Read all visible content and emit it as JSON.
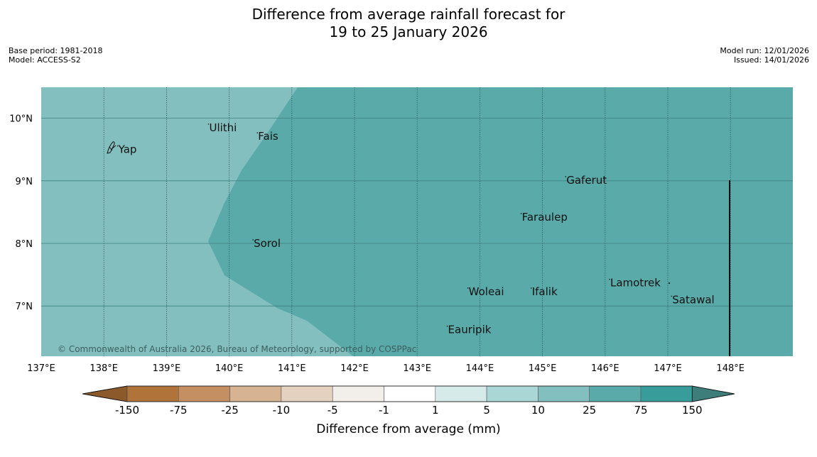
{
  "title_line1": "Difference from average rainfall forecast for",
  "title_line2": "19 to 25 January 2026",
  "meta_left": [
    "Base period: 1981-2018",
    "Model: ACCESS-S2"
  ],
  "meta_right": [
    "Model run: 12/01/2026",
    "Issued: 14/01/2026"
  ],
  "lat_labels": [
    "10°N",
    "9°N",
    "8°N",
    "7°N"
  ],
  "lon_labels": [
    "137°E",
    "138°E",
    "139°E",
    "140°E",
    "141°E",
    "142°E",
    "143°E",
    "144°E",
    "145°E",
    "146°E",
    "147°E",
    "148°E"
  ],
  "places": [
    {
      "name": "Ulithi",
      "lon": 139.67,
      "lat": 9.85
    },
    {
      "name": "Fais",
      "lon": 140.45,
      "lat": 9.71
    },
    {
      "name": "Yap",
      "lon": 138.22,
      "lat": 9.5
    },
    {
      "name": "Gaferut",
      "lon": 145.37,
      "lat": 9.01
    },
    {
      "name": "Faraulep",
      "lon": 144.66,
      "lat": 8.42
    },
    {
      "name": "Sorol",
      "lon": 140.38,
      "lat": 8.0
    },
    {
      "name": "Lamotrek",
      "lon": 146.07,
      "lat": 7.37
    },
    {
      "name": "Woleai",
      "lon": 143.81,
      "lat": 7.23
    },
    {
      "name": "Ifalik",
      "lon": 144.82,
      "lat": 7.23
    },
    {
      "name": "Satawal",
      "lon": 147.06,
      "lat": 7.1
    },
    {
      "name": "Eauripik",
      "lon": 143.48,
      "lat": 6.62
    }
  ],
  "copyright": "© Commonwealth of Australia 2026, Bureau of Meteorology, supported by COSPPac",
  "colorbar": {
    "ticks": [
      "-150",
      "-75",
      "-25",
      "-10",
      "-5",
      "-1",
      "1",
      "5",
      "10",
      "25",
      "75",
      "150"
    ],
    "colors": [
      "#8c5a2a",
      "#b07339",
      "#c38f63",
      "#d6b393",
      "#e5d1c0",
      "#f2eeea",
      "#ffffff",
      "#d6eaea",
      "#abd6d6",
      "#84bfbf",
      "#5aaaaa",
      "#379c9a",
      "#3d7d7a"
    ],
    "label": "Difference from average (mm)"
  },
  "region_colors": {
    "west": "#84bfbf",
    "east": "#5aaaaa"
  }
}
